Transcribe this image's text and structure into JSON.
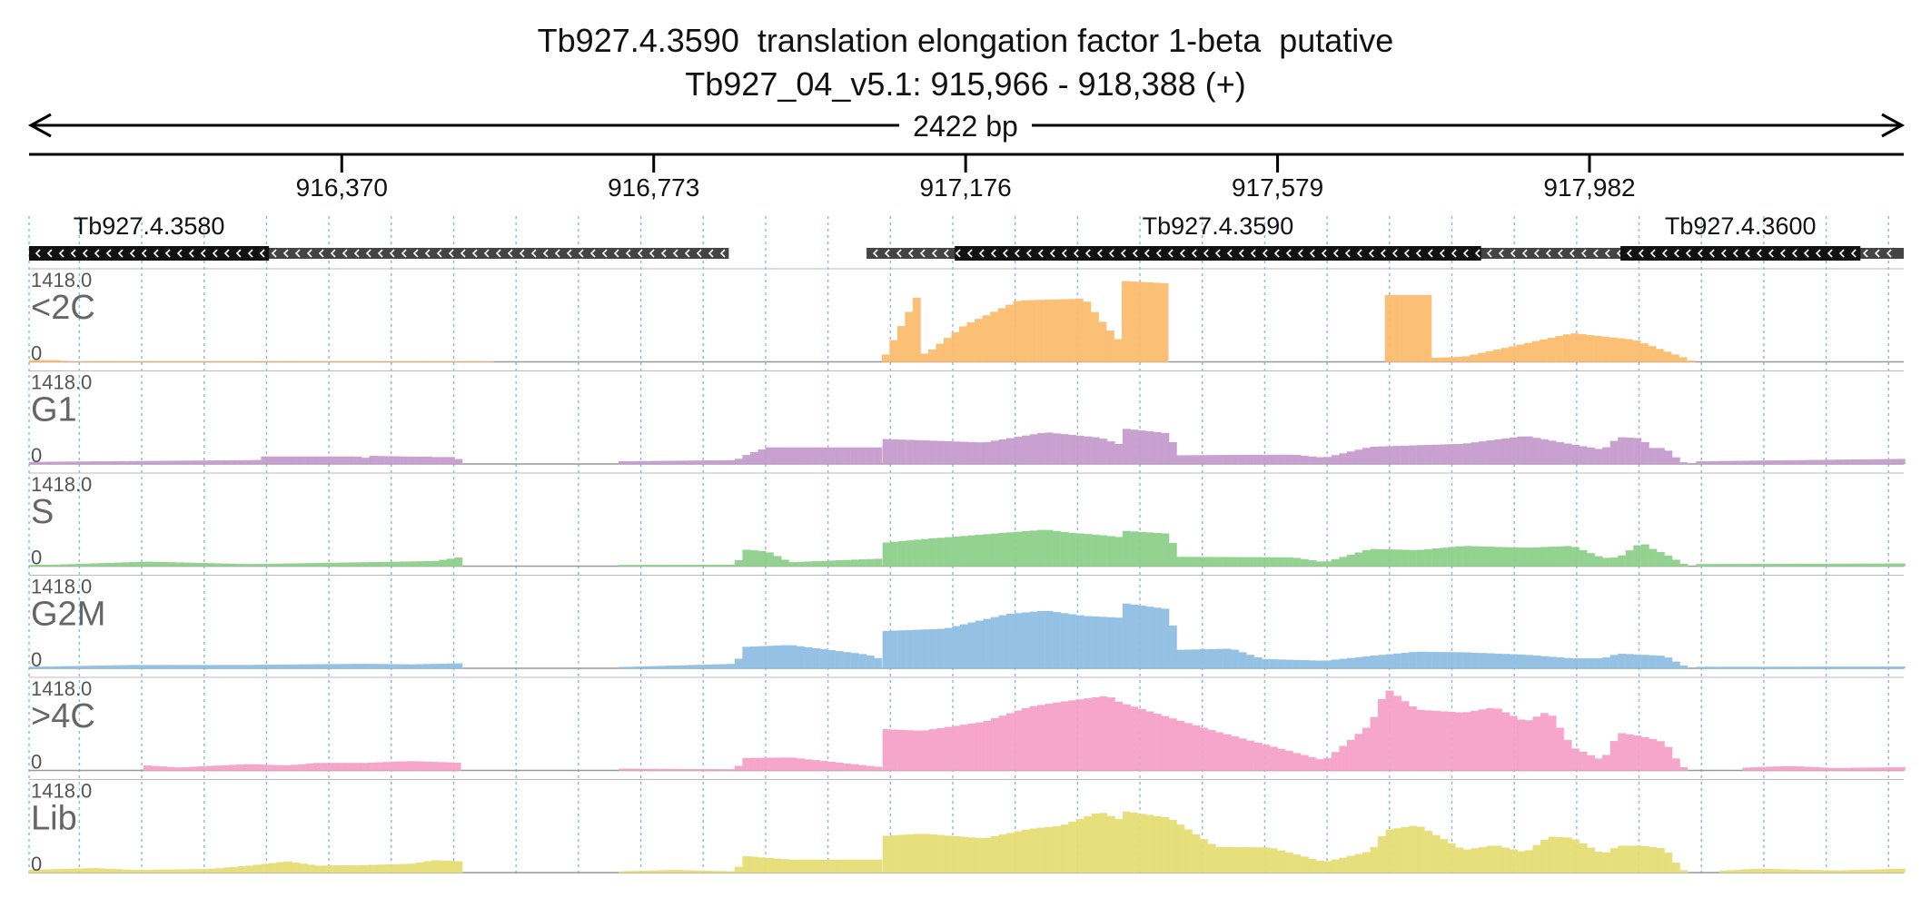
{
  "title": "Tb927.4.3590  translation elongation factor 1-beta  putative",
  "subtitle": "Tb927_04_v5.1: 915,966 - 918,388 (+)",
  "span_label": "2422 bp",
  "region": {
    "start": 915966,
    "end": 918388
  },
  "ticks": [
    {
      "pos": 916370,
      "label": "916,370"
    },
    {
      "pos": 916773,
      "label": "916,773"
    },
    {
      "pos": 917176,
      "label": "917,176"
    },
    {
      "pos": 917579,
      "label": "917,579"
    },
    {
      "pos": 917982,
      "label": "917,982"
    }
  ],
  "genes": [
    {
      "name": "Tb927.4.3580",
      "label": "Tb927.4.3580",
      "strand": "-",
      "utr": [
        915966,
        916870
      ],
      "cds": [
        915966,
        916276
      ]
    },
    {
      "name": "Tb927.4.3590",
      "label": "Tb927.4.3590",
      "strand": "-",
      "utr": [
        917048,
        918255
      ],
      "cds": [
        917162,
        917842
      ]
    },
    {
      "name": "Tb927.4.3600",
      "label": "Tb927.4.3600",
      "strand": "-",
      "utr": [
        918022,
        918388
      ],
      "cds": [
        918022,
        918332
      ]
    }
  ],
  "tracks": [
    {
      "name": "<2C",
      "color": "#fbbd6f"
    },
    {
      "name": "G1",
      "color": "#c59ccd"
    },
    {
      "name": "S",
      "color": "#8ed08b"
    },
    {
      "name": "G2M",
      "color": "#8fbfe3"
    },
    {
      "name": ">4C",
      "color": "#f5a0c8"
    },
    {
      "name": "Lib",
      "color": "#e5dd75"
    }
  ],
  "chart_data": {
    "type": "bar",
    "title": "Tb927.4.3590  translation elongation factor 1-beta  putative",
    "subtitle": "Tb927_04_v5.1: 915,966 - 918,388 (+)",
    "xlim": [
      915966,
      918388
    ],
    "ylim": [
      0,
      1418.0
    ],
    "y_max_label": "1418.0",
    "y_min_label": "0",
    "bin_bp": 10,
    "series": [
      {
        "name": "<2C",
        "segments": [
          {
            "x": [
              915966,
              916000,
              916020,
              916560,
              916570
            ],
            "y": [
              25,
              25,
              3,
              3,
              0
            ]
          },
          {
            "x": [
              917068,
              917120,
              917121,
              917131,
              917175,
              917245,
              917330,
              917350,
              917380,
              917381,
              917440,
              917441
            ],
            "y": [
              0,
              1220,
              120,
              180,
              600,
              1010,
              1040,
              700,
              270,
              1330,
              1290,
              0
            ]
          },
          {
            "x": [
              917718,
              917719,
              917775,
              917776,
              917820,
              917900,
              917960,
              918040,
              918110,
              918115
            ],
            "y": [
              0,
              1100,
              1100,
              60,
              80,
              300,
              470,
              360,
              40,
              0
            ]
          }
        ]
      },
      {
        "name": "G1",
        "segments": [
          {
            "x": [
              915966,
              916250,
              916260,
              916270,
              916390,
              916400,
              916410,
              916470,
              916480,
              916490,
              916518,
              916528
            ],
            "y": [
              30,
              60,
              55,
              120,
              120,
              95,
              130,
              115,
              120,
              110,
              110,
              0
            ]
          },
          {
            "x": [
              916728,
              916880,
              916890,
              916920,
              917068
            ],
            "y": [
              40,
              60,
              130,
              270,
              270
            ]
          },
          {
            "x": [
              917069,
              917200,
              917280,
              917350,
              917380,
              917381,
              917440,
              917450,
              917600,
              917640,
              917700,
              917820,
              917900,
              917960,
              918000,
              918020,
              918050,
              918060,
              918080,
              918100,
              918110
            ],
            "y": [
              410,
              350,
              520,
              430,
              300,
              580,
              500,
              140,
              150,
              100,
              280,
              330,
              460,
              320,
              230,
              440,
              420,
              260,
              260,
              40,
              0
            ]
          },
          {
            "x": [
              918120,
              918388
            ],
            "y": [
              40,
              80
            ]
          }
        ]
      },
      {
        "name": "S",
        "segments": [
          {
            "x": [
              915966,
              916000,
              916120,
              916250,
              916300,
              916400,
              916490,
              916528,
              916529
            ],
            "y": [
              15,
              20,
              70,
              30,
              40,
              60,
              80,
              150,
              0
            ]
          },
          {
            "x": [
              916728,
              916880,
              916890,
              916920,
              916950,
              917068
            ],
            "y": [
              15,
              20,
              270,
              240,
              60,
              120
            ]
          },
          {
            "x": [
              917069,
              917120,
              917200,
              917280,
              917310,
              917350,
              917380,
              917381,
              917440,
              917450,
              917600,
              917640,
              917700,
              917760,
              917820,
              917900,
              917960,
              918000,
              918020,
              918050,
              918060,
              918080,
              918100,
              918110
            ],
            "y": [
              380,
              440,
              520,
              600,
              550,
              510,
              470,
              580,
              530,
              150,
              140,
              60,
              280,
              260,
              330,
              300,
              330,
              130,
              140,
              390,
              300,
              200,
              60,
              0
            ]
          },
          {
            "x": [
              918120,
              918388
            ],
            "y": [
              30,
              40
            ]
          }
        ]
      },
      {
        "name": "G2M",
        "segments": [
          {
            "x": [
              915966,
              916100,
              916250,
              916270,
              916400,
              916460,
              916528,
              916529
            ],
            "y": [
              20,
              50,
              50,
              55,
              70,
              60,
              80,
              0
            ]
          },
          {
            "x": [
              916728,
              916880,
              916890,
              916950,
              917050,
              917068
            ],
            "y": [
              15,
              70,
              350,
              380,
              220,
              140
            ]
          },
          {
            "x": [
              917069,
              917150,
              917230,
              917280,
              917330,
              917380,
              917381,
              917440,
              917450,
              917520,
              917560,
              917640,
              917700,
              917760,
              917820,
              917900,
              917960,
              918000,
              918020,
              918050,
              918080,
              918110
            ],
            "y": [
              610,
              650,
              890,
              950,
              860,
              830,
              1070,
              970,
              300,
              320,
              150,
              120,
              200,
              270,
              260,
              220,
              160,
              160,
              240,
              220,
              200,
              0
            ]
          },
          {
            "x": [
              918120,
              918388
            ],
            "y": [
              20,
              25
            ]
          }
        ]
      },
      {
        "name": ">4C",
        "segments": [
          {
            "x": [
              916114,
              916160,
              916200,
              916250,
              916300,
              916340,
              916400,
              916460,
              916528,
              916529
            ],
            "y": [
              80,
              45,
              70,
              100,
              80,
              120,
              120,
              150,
              120,
              0
            ]
          },
          {
            "x": [
              916728,
              916800,
              916880,
              916890,
              916950,
              917068
            ],
            "y": [
              25,
              20,
              15,
              200,
              210,
              50
            ]
          },
          {
            "x": [
              917069,
              917120,
              917200,
              917260,
              917300,
              917360,
              917380,
              917381,
              917440,
              917500,
              917570,
              917640,
              917700,
              917720,
              917760,
              917820,
              917860,
              917900,
              917930,
              917960,
              918000,
              918020,
              918050,
              918080,
              918100,
              918110
            ],
            "y": [
              680,
              650,
              800,
              1050,
              1130,
              1230,
              1090,
              1100,
              870,
              640,
              400,
              160,
              760,
              1350,
              1000,
              950,
              1040,
              800,
              980,
              380,
              160,
              620,
              560,
              460,
              80,
              0
            ]
          },
          {
            "x": [
              918180,
              918240,
              918300,
              918388
            ],
            "y": [
              40,
              70,
              35,
              50
            ]
          }
        ]
      },
      {
        "name": "Lib",
        "segments": [
          {
            "x": [
              915966,
              916050,
              916100,
              916200,
              916250,
              916300,
              916340,
              916400,
              916460,
              916490,
              916528,
              916529
            ],
            "y": [
              40,
              70,
              40,
              55,
              110,
              180,
              110,
              120,
              140,
              200,
              180,
              0
            ]
          },
          {
            "x": [
              916728,
              916800,
              916880,
              916890,
              916950,
              917068
            ],
            "y": [
              15,
              40,
              15,
              270,
              210,
              210
            ]
          },
          {
            "x": [
              917069,
              917120,
              917200,
              917260,
              917300,
              917350,
              917380,
              917381,
              917440,
              917500,
              917570,
              917640,
              917700,
              917720,
              917760,
              917820,
              917860,
              917900,
              917930,
              917960,
              918000,
              918020,
              918050,
              918080,
              918100,
              918110
            ],
            "y": [
              600,
              640,
              560,
              720,
              770,
              1000,
              850,
              1010,
              900,
              420,
              410,
              170,
              350,
              700,
              780,
              370,
              450,
              330,
              590,
              570,
              300,
              440,
              440,
              390,
              60,
              0
            ]
          },
          {
            "x": [
              918150,
              918200,
              918300,
              918388
            ],
            "y": [
              25,
              60,
              30,
              60
            ]
          }
        ]
      }
    ]
  }
}
